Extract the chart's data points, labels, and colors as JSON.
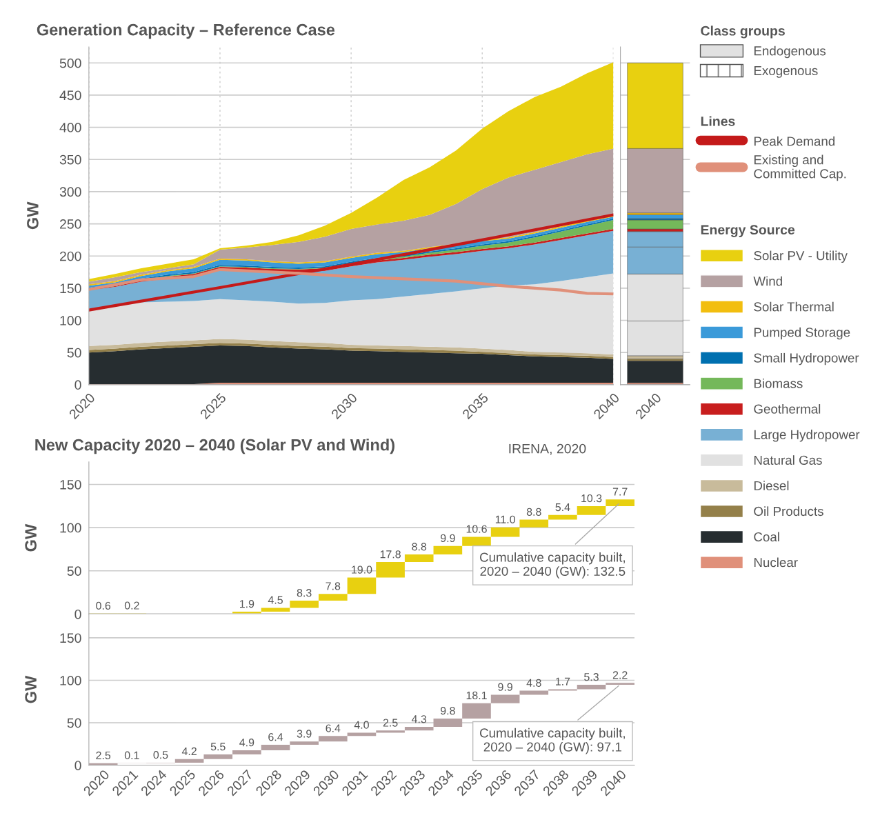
{
  "chart_data": [
    {
      "type": "area",
      "title": "Generation Capacity – Reference Case",
      "ylabel": "GW",
      "x": [
        2020,
        2021,
        2022,
        2023,
        2024,
        2025,
        2026,
        2027,
        2028,
        2029,
        2030,
        2031,
        2032,
        2033,
        2034,
        2035,
        2036,
        2037,
        2038,
        2039,
        2040
      ],
      "xlim": [
        2020,
        2040
      ],
      "xticks": [
        2020,
        2025,
        2030,
        2035,
        2040
      ],
      "ylim": [
        0,
        525
      ],
      "yticks": [
        0,
        50,
        100,
        150,
        200,
        250,
        300,
        350,
        400,
        450,
        500
      ],
      "grid": true,
      "legend": "right",
      "legend_title": "Energy Source",
      "stacked": true,
      "annotations": [
        "Class groups",
        "Endogenous",
        "Exogenous",
        "Lines"
      ],
      "series": [
        {
          "name": "Nuclear",
          "color": "#e0907a",
          "values": [
            1,
            1,
            1,
            1,
            1,
            3,
            3,
            3,
            3,
            3,
            3,
            3,
            3,
            3,
            3,
            3,
            3,
            3,
            3,
            3,
            3
          ]
        },
        {
          "name": "Coal",
          "color": "#262d30",
          "values": [
            49,
            51,
            54,
            56,
            58,
            58,
            57,
            55,
            53,
            52,
            50,
            49,
            48,
            47,
            46,
            45,
            43,
            41,
            40,
            39,
            37
          ]
        },
        {
          "name": "Oil Products",
          "color": "#94804a",
          "values": [
            4,
            4,
            4,
            4,
            4,
            4,
            4,
            4,
            4,
            4,
            4,
            4,
            4,
            4,
            4,
            3,
            3,
            3,
            3,
            3,
            3
          ]
        },
        {
          "name": "Diesel",
          "color": "#c8bb9b",
          "values": [
            6,
            6,
            6,
            6,
            6,
            6,
            6,
            6,
            6,
            6,
            5,
            5,
            5,
            5,
            5,
            5,
            5,
            4,
            4,
            4,
            4
          ]
        },
        {
          "name": "Natural Gas",
          "color": "#e1e1e1",
          "values": [
            58,
            61,
            63,
            62,
            61,
            62,
            61,
            61,
            60,
            62,
            69,
            72,
            77,
            82,
            87,
            94,
            100,
            105,
            111,
            118,
            126
          ]
        },
        {
          "name": "Large Hydropower",
          "color": "#78b0d4",
          "values": [
            29,
            29,
            32,
            36,
            38,
            45,
            46,
            47,
            49,
            50,
            53,
            57,
            57,
            58,
            58,
            58,
            58,
            62,
            64,
            65,
            66
          ]
        },
        {
          "name": "Geothermal",
          "color": "#c81e1e",
          "values": [
            1,
            1,
            2,
            3,
            4,
            5,
            5,
            4,
            4,
            4,
            3,
            3,
            3,
            3,
            3,
            3,
            3,
            3,
            3,
            3,
            3
          ]
        },
        {
          "name": "Biomass",
          "color": "#74b85a",
          "values": [
            1,
            1,
            1,
            1,
            1,
            1,
            1,
            1,
            1,
            1,
            2,
            2,
            2,
            3,
            4,
            5,
            6,
            8,
            10,
            12,
            14
          ]
        },
        {
          "name": "Small Hydropower",
          "color": "#0070b0",
          "values": [
            2,
            2,
            2,
            2,
            2,
            2,
            2,
            2,
            2,
            2,
            2,
            2,
            2,
            2,
            2,
            2,
            2,
            2,
            2,
            2,
            2
          ]
        },
        {
          "name": "Pumped Storage",
          "color": "#3a9ad9",
          "values": [
            3,
            3,
            4,
            5,
            6,
            8,
            8,
            7,
            6,
            6,
            6,
            6,
            5,
            5,
            5,
            5,
            4,
            4,
            4,
            4,
            3
          ]
        },
        {
          "name": "Solar Thermal",
          "color": "#f2be0f",
          "values": [
            2,
            2,
            2,
            2,
            2,
            2,
            2,
            2,
            2,
            2,
            2,
            2,
            2,
            2,
            2,
            2,
            2,
            2,
            2,
            2,
            2
          ]
        },
        {
          "name": "Wind",
          "color": "#b5a1a2",
          "values": [
            4,
            6,
            4,
            3,
            4,
            14,
            18,
            25,
            32,
            38,
            43,
            44,
            47,
            50,
            62,
            79,
            93,
            97,
            100,
            103,
            104
          ]
        },
        {
          "name": "Solar PV - Utility",
          "color": "#e8d010",
          "values": [
            4,
            5,
            6,
            7,
            8,
            2,
            3,
            5,
            10,
            17,
            25,
            42,
            63,
            74,
            83,
            94,
            103,
            113,
            117,
            126,
            134
          ]
        },
        {
          "name": "Peak Demand",
          "type": "line",
          "color": "#c41a1a",
          "x": [
            2020,
            2025,
            2030,
            2035,
            2040
          ],
          "values": [
            116,
            151,
            187,
            225,
            264
          ]
        },
        {
          "name": "Existing and Committed Cap.",
          "type": "line",
          "color": "#e0907a",
          "x": [
            2020,
            2022,
            2024,
            2025,
            2028,
            2030,
            2034,
            2035,
            2036,
            2038,
            2039,
            2040
          ],
          "values": [
            148,
            163,
            168,
            179,
            173,
            168,
            161,
            157,
            153,
            147,
            142,
            141
          ]
        }
      ]
    },
    {
      "type": "bar",
      "stacked": true,
      "categories": [
        "2040"
      ],
      "ylim": [
        0,
        525
      ],
      "yticks": [
        0,
        50,
        100,
        150,
        200,
        250,
        300,
        350,
        400,
        450,
        500
      ],
      "tick_labels": "x",
      "grid": "y",
      "series": [
        {
          "color": "#e0907a",
          "values": [
            3
          ]
        },
        {
          "color": "#262d30",
          "values": [
            34
          ]
        },
        {
          "color": "#94804a",
          "values": [
            3
          ]
        },
        {
          "color": "#c8bb9b",
          "values": [
            5
          ]
        },
        {
          "color": "#e1e1e1",
          "values": [
            54
          ]
        },
        {
          "color": "#e1e1e1",
          "values": [
            73
          ]
        },
        {
          "color": "#78b0d4",
          "values": [
            42
          ]
        },
        {
          "color": "#78b0d4",
          "values": [
            24
          ]
        },
        {
          "color": "#c81e1e",
          "values": [
            4
          ]
        },
        {
          "color": "#74b85a",
          "values": [
            14
          ]
        },
        {
          "color": "#0070b0",
          "values": [
            2
          ]
        },
        {
          "color": "#3a9ad9",
          "values": [
            6
          ]
        },
        {
          "color": "#f2be0f",
          "values": [
            3
          ]
        },
        {
          "color": "#b5a1a2",
          "values": [
            100
          ]
        },
        {
          "color": "#e8d010",
          "values": [
            133
          ]
        }
      ]
    },
    {
      "type": "bar",
      "title": "New Capacity 2020 – 2040 (Solar PV and Wind)",
      "ylabel": "GW",
      "categories": [
        "2020",
        "2021",
        "2024",
        "2025",
        "2026",
        "2027",
        "2028",
        "2029",
        "2030",
        "2031",
        "2032",
        "2033",
        "2034",
        "2035",
        "2036",
        "2037",
        "2038",
        "2039",
        "2040"
      ],
      "ylim": [
        0,
        176
      ],
      "yticks": [
        0,
        50,
        100,
        150
      ],
      "tick_labels": "y",
      "grid": "y",
      "annotations": [
        "IRENA, 2020",
        {
          "text": "Cumulative capacity built,\n2020 – 2040 (GW): 132.5",
          "x": "2040",
          "y": 129
        }
      ],
      "series": [
        {
          "color": "#e8d010",
          "values": [
            0.6,
            0.2,
            null,
            null,
            null,
            1.9,
            4.5,
            8.3,
            7.8,
            19.0,
            17.8,
            8.8,
            9.9,
            10.6,
            11.0,
            8.8,
            5.4,
            10.3,
            7.7
          ],
          "base": [
            0,
            0.6,
            null,
            null,
            null,
            0.8,
            2.7,
            7.2,
            15.5,
            23.3,
            42.3,
            60.1,
            68.9,
            78.8,
            89.4,
            100.4,
            109.2,
            114.6,
            124.9
          ],
          "value_labels": [
            "0.6",
            "0.2",
            null,
            null,
            null,
            "1.9",
            "4.5",
            "8.3",
            "7.8",
            "19.0",
            "17.8",
            "8.8",
            "9.9",
            "10.6",
            "11.0",
            "8.8",
            "5.4",
            "10.3",
            "7.7"
          ]
        }
      ]
    },
    {
      "type": "bar",
      "ylabel": "GW",
      "categories": [
        "2020",
        "2021",
        "2024",
        "2025",
        "2026",
        "2027",
        "2028",
        "2029",
        "2030",
        "2031",
        "2032",
        "2033",
        "2034",
        "2035",
        "2036",
        "2037",
        "2038",
        "2039",
        "2040"
      ],
      "ylim": [
        0,
        178
      ],
      "yticks": [
        0,
        50,
        100,
        150
      ],
      "grid": "y",
      "annotations": [
        {
          "text": "Cumulative capacity built,\n2020 – 2040 (GW): 97.1",
          "x": "2040",
          "y": 95
        }
      ],
      "series": [
        {
          "color": "#b5a1a2",
          "values": [
            2.5,
            0.1,
            0.5,
            4.2,
            5.5,
            4.9,
            6.4,
            3.9,
            6.4,
            4.0,
            2.5,
            4.3,
            9.8,
            18.1,
            9.9,
            4.8,
            1.7,
            5.3,
            2.2
          ],
          "base": [
            0,
            2.5,
            2.6,
            3.1,
            7.3,
            12.8,
            17.7,
            24.1,
            28.0,
            34.4,
            38.4,
            40.9,
            45.2,
            55.0,
            73.1,
            83.0,
            87.8,
            89.5,
            94.8
          ],
          "value_labels": [
            "2.5",
            "0.1",
            "0.5",
            "4.2",
            "5.5",
            "4.9",
            "6.4",
            "3.9",
            "6.4",
            "4.0",
            "2.5",
            "4.3",
            "9.8",
            "18.1",
            "9.9",
            "4.8",
            "1.7",
            "5.3",
            "2.2"
          ]
        }
      ]
    }
  ]
}
